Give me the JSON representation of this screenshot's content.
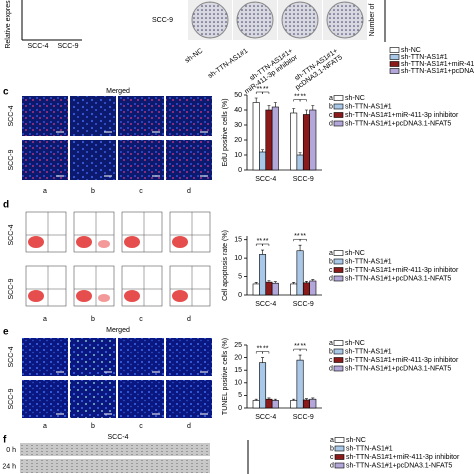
{
  "figure": {
    "top": {
      "left_ylabel": "Relative expressi",
      "left_categories": [
        "SCC-4",
        "SCC-9"
      ],
      "row_label": "SCC-9",
      "group_labels": [
        [
          "sh-NC"
        ],
        [
          "sh-TTN-AS1#1"
        ],
        [
          "sh-TTN-AS1#1+",
          "miR-411-3p inhibitor"
        ],
        [
          "sh-TTN-AS1#1+",
          "pcDNA3.1-NFAT5"
        ]
      ],
      "right_ylabel": "Number of",
      "legend": [
        "sh-NC",
        "sh-TTN-AS1#1",
        "sh-TTN-AS1#1+miR-411-3p inhibitor",
        "sh-TTN-AS1#1+pcDNA3.1-NFAT5"
      ]
    },
    "panels": [
      {
        "letter": "c",
        "title": "Merged",
        "rows": [
          "SCC-4",
          "SCC-9"
        ],
        "columns": [
          "a",
          "b",
          "c",
          "d"
        ]
      },
      {
        "letter": "d",
        "rows": [
          "SCC-4",
          "SCC-9"
        ],
        "columns": [
          "a",
          "b",
          "c",
          "d"
        ]
      },
      {
        "letter": "e",
        "title": "Merged",
        "rows": [
          "SCC-4",
          "SCC-9"
        ],
        "columns": [
          "a",
          "b",
          "c",
          "d"
        ]
      },
      {
        "letter": "f",
        "title": "SCC-4",
        "rows": [
          "0 h",
          "24 h"
        ]
      }
    ],
    "f_legend": [
      {
        "key": "a",
        "name": "sh-NC"
      },
      {
        "key": "b",
        "name": "sh-TTN-AS1#1"
      },
      {
        "key": "c",
        "name": "sh-TTN-AS1#1+miR-411-3p inhibitor"
      },
      {
        "key": "d",
        "name": "sh-TTN-AS1#1+pcDNA3.1-NFAT5"
      }
    ]
  },
  "chart_data": [
    {
      "type": "bar",
      "ylabel": "EdU positive cells (%)",
      "categories": [
        "SCC-4",
        "SCC-9"
      ],
      "significance": "**",
      "series": [
        {
          "key": "a",
          "name": "sh-NC",
          "color": "#ffffff",
          "values": [
            45,
            38
          ],
          "errors": [
            3,
            3
          ]
        },
        {
          "key": "b",
          "name": "sh-TTN-AS1#1",
          "color": "#a9c8e8",
          "values": [
            12,
            10
          ],
          "errors": [
            1.5,
            1.5
          ]
        },
        {
          "key": "c",
          "name": "sh-TTN-AS1#1+miR-411-3p inhibitor",
          "color": "#8b1a1a",
          "values": [
            40,
            37
          ],
          "errors": [
            3,
            3
          ]
        },
        {
          "key": "d",
          "name": "sh-TTN-AS1#1+pcDNA3.1-NFAT5",
          "color": "#b3a6d9",
          "values": [
            42,
            40
          ],
          "errors": [
            3,
            3
          ]
        }
      ],
      "ylim": [
        0,
        50
      ],
      "yticks": [
        0,
        10,
        20,
        30,
        40,
        50
      ]
    },
    {
      "type": "bar",
      "ylabel": "Cell apoptosis rate (%)",
      "categories": [
        "SCC-4",
        "SCC-9"
      ],
      "significance": "**",
      "series": [
        {
          "key": "a",
          "name": "sh-NC",
          "color": "#ffffff",
          "values": [
            3,
            3
          ],
          "errors": [
            0.4,
            0.4
          ]
        },
        {
          "key": "b",
          "name": "sh-TTN-AS1#1",
          "color": "#a9c8e8",
          "values": [
            11,
            12
          ],
          "errors": [
            1.2,
            1.5
          ]
        },
        {
          "key": "c",
          "name": "sh-TTN-AS1#1+miR-411-3p inhibitor",
          "color": "#8b1a1a",
          "values": [
            3.5,
            3.3
          ],
          "errors": [
            0.4,
            0.4
          ]
        },
        {
          "key": "d",
          "name": "sh-TTN-AS1#1+pcDNA3.1-NFAT5",
          "color": "#b3a6d9",
          "values": [
            3.2,
            3.8
          ],
          "errors": [
            0.4,
            0.4
          ]
        }
      ],
      "ylim": [
        0,
        16
      ],
      "yticks": [
        0,
        5,
        10,
        15
      ]
    },
    {
      "type": "bar",
      "ylabel": "TUNEL positive cells (%)",
      "categories": [
        "SCC-4",
        "SCC-9"
      ],
      "significance": "**",
      "series": [
        {
          "key": "a",
          "name": "sh-NC",
          "color": "#ffffff",
          "values": [
            3,
            3
          ],
          "errors": [
            0.5,
            0.5
          ]
        },
        {
          "key": "b",
          "name": "sh-TTN-AS1#1",
          "color": "#a9c8e8",
          "values": [
            18,
            19
          ],
          "errors": [
            2,
            2
          ]
        },
        {
          "key": "c",
          "name": "sh-TTN-AS1#1+miR-411-3p inhibitor",
          "color": "#8b1a1a",
          "values": [
            3.5,
            3.2
          ],
          "errors": [
            0.5,
            0.5
          ]
        },
        {
          "key": "d",
          "name": "sh-TTN-AS1#1+pcDNA3.1-NFAT5",
          "color": "#b3a6d9",
          "values": [
            3,
            3.5
          ],
          "errors": [
            0.5,
            0.5
          ]
        }
      ],
      "ylim": [
        0,
        25
      ],
      "yticks": [
        0,
        5,
        10,
        15,
        20,
        25
      ]
    }
  ]
}
